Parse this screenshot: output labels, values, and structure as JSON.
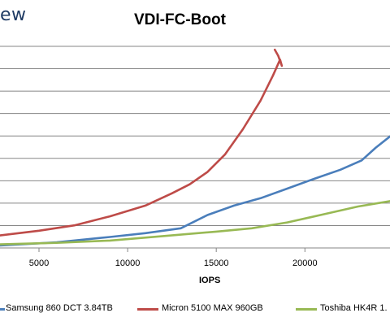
{
  "brand": {
    "logo_text": "ew"
  },
  "chart_data": {
    "type": "line",
    "title": "VDI-FC-Boot",
    "xlabel": "IOPS",
    "ylabel": "",
    "xlim": [
      2800,
      24800
    ],
    "ylim": [
      0,
      9
    ],
    "x_ticks": [
      5000,
      10000,
      15000,
      20000
    ],
    "grid": true,
    "legend_position": "bottom",
    "series": [
      {
        "name": "Samsung 860 DCT 3.84TB",
        "color": "#4a7ebb",
        "points": [
          [
            2800,
            0.11
          ],
          [
            6000,
            0.25
          ],
          [
            9000,
            0.49
          ],
          [
            11000,
            0.66
          ],
          [
            13000,
            0.88
          ],
          [
            14500,
            1.47
          ],
          [
            16000,
            1.89
          ],
          [
            17500,
            2.22
          ],
          [
            19000,
            2.65
          ],
          [
            20500,
            3.08
          ],
          [
            22000,
            3.49
          ],
          [
            23200,
            3.91
          ],
          [
            24000,
            4.48
          ],
          [
            24800,
            4.98
          ]
        ]
      },
      {
        "name": "Micron 5100 MAX 960GB",
        "color": "#be4b48",
        "points": [
          [
            2800,
            0.56
          ],
          [
            5000,
            0.77
          ],
          [
            7000,
            1.01
          ],
          [
            9000,
            1.41
          ],
          [
            11000,
            1.89
          ],
          [
            12500,
            2.44
          ],
          [
            13500,
            2.84
          ],
          [
            14500,
            3.39
          ],
          [
            15500,
            4.18
          ],
          [
            16500,
            5.3
          ],
          [
            17500,
            6.58
          ],
          [
            18200,
            7.7
          ],
          [
            18600,
            8.41
          ],
          [
            18700,
            8.13
          ],
          [
            18500,
            8.57
          ],
          [
            18300,
            8.85
          ]
        ]
      },
      {
        "name": "Toshiba HK4R 1.",
        "color": "#98b954",
        "points": [
          [
            2800,
            0.16
          ],
          [
            6000,
            0.23
          ],
          [
            9000,
            0.33
          ],
          [
            12000,
            0.53
          ],
          [
            15000,
            0.73
          ],
          [
            17000,
            0.88
          ],
          [
            19000,
            1.14
          ],
          [
            21000,
            1.49
          ],
          [
            23000,
            1.85
          ],
          [
            24800,
            2.09
          ]
        ]
      }
    ]
  }
}
